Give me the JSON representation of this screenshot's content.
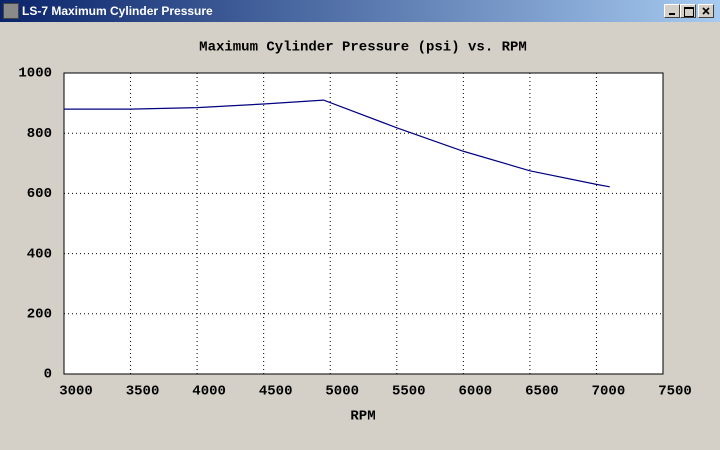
{
  "window": {
    "title": "LS-7 Maximum Cylinder Pressure"
  },
  "chart_data": {
    "type": "line",
    "title": "Maximum Cylinder Pressure (psi) vs. RPM",
    "x_label": "RPM",
    "x": [
      3000,
      3500,
      4000,
      4500,
      4950,
      5500,
      6000,
      6500,
      7000,
      7100
    ],
    "series": [
      {
        "name": "Maximum Cylinder Pressure",
        "color": "#000080",
        "values": [
          880,
          880,
          885,
          897,
          910,
          818,
          740,
          675,
          630,
          622
        ]
      }
    ],
    "xlim": [
      3000,
      7500
    ],
    "xticks": [
      3000,
      3500,
      4000,
      4500,
      5000,
      5500,
      6000,
      6500,
      7000,
      7500
    ],
    "ylim": [
      0,
      1000
    ],
    "yticks": [
      0,
      200,
      400,
      600,
      800,
      1000
    ],
    "grid": true
  }
}
